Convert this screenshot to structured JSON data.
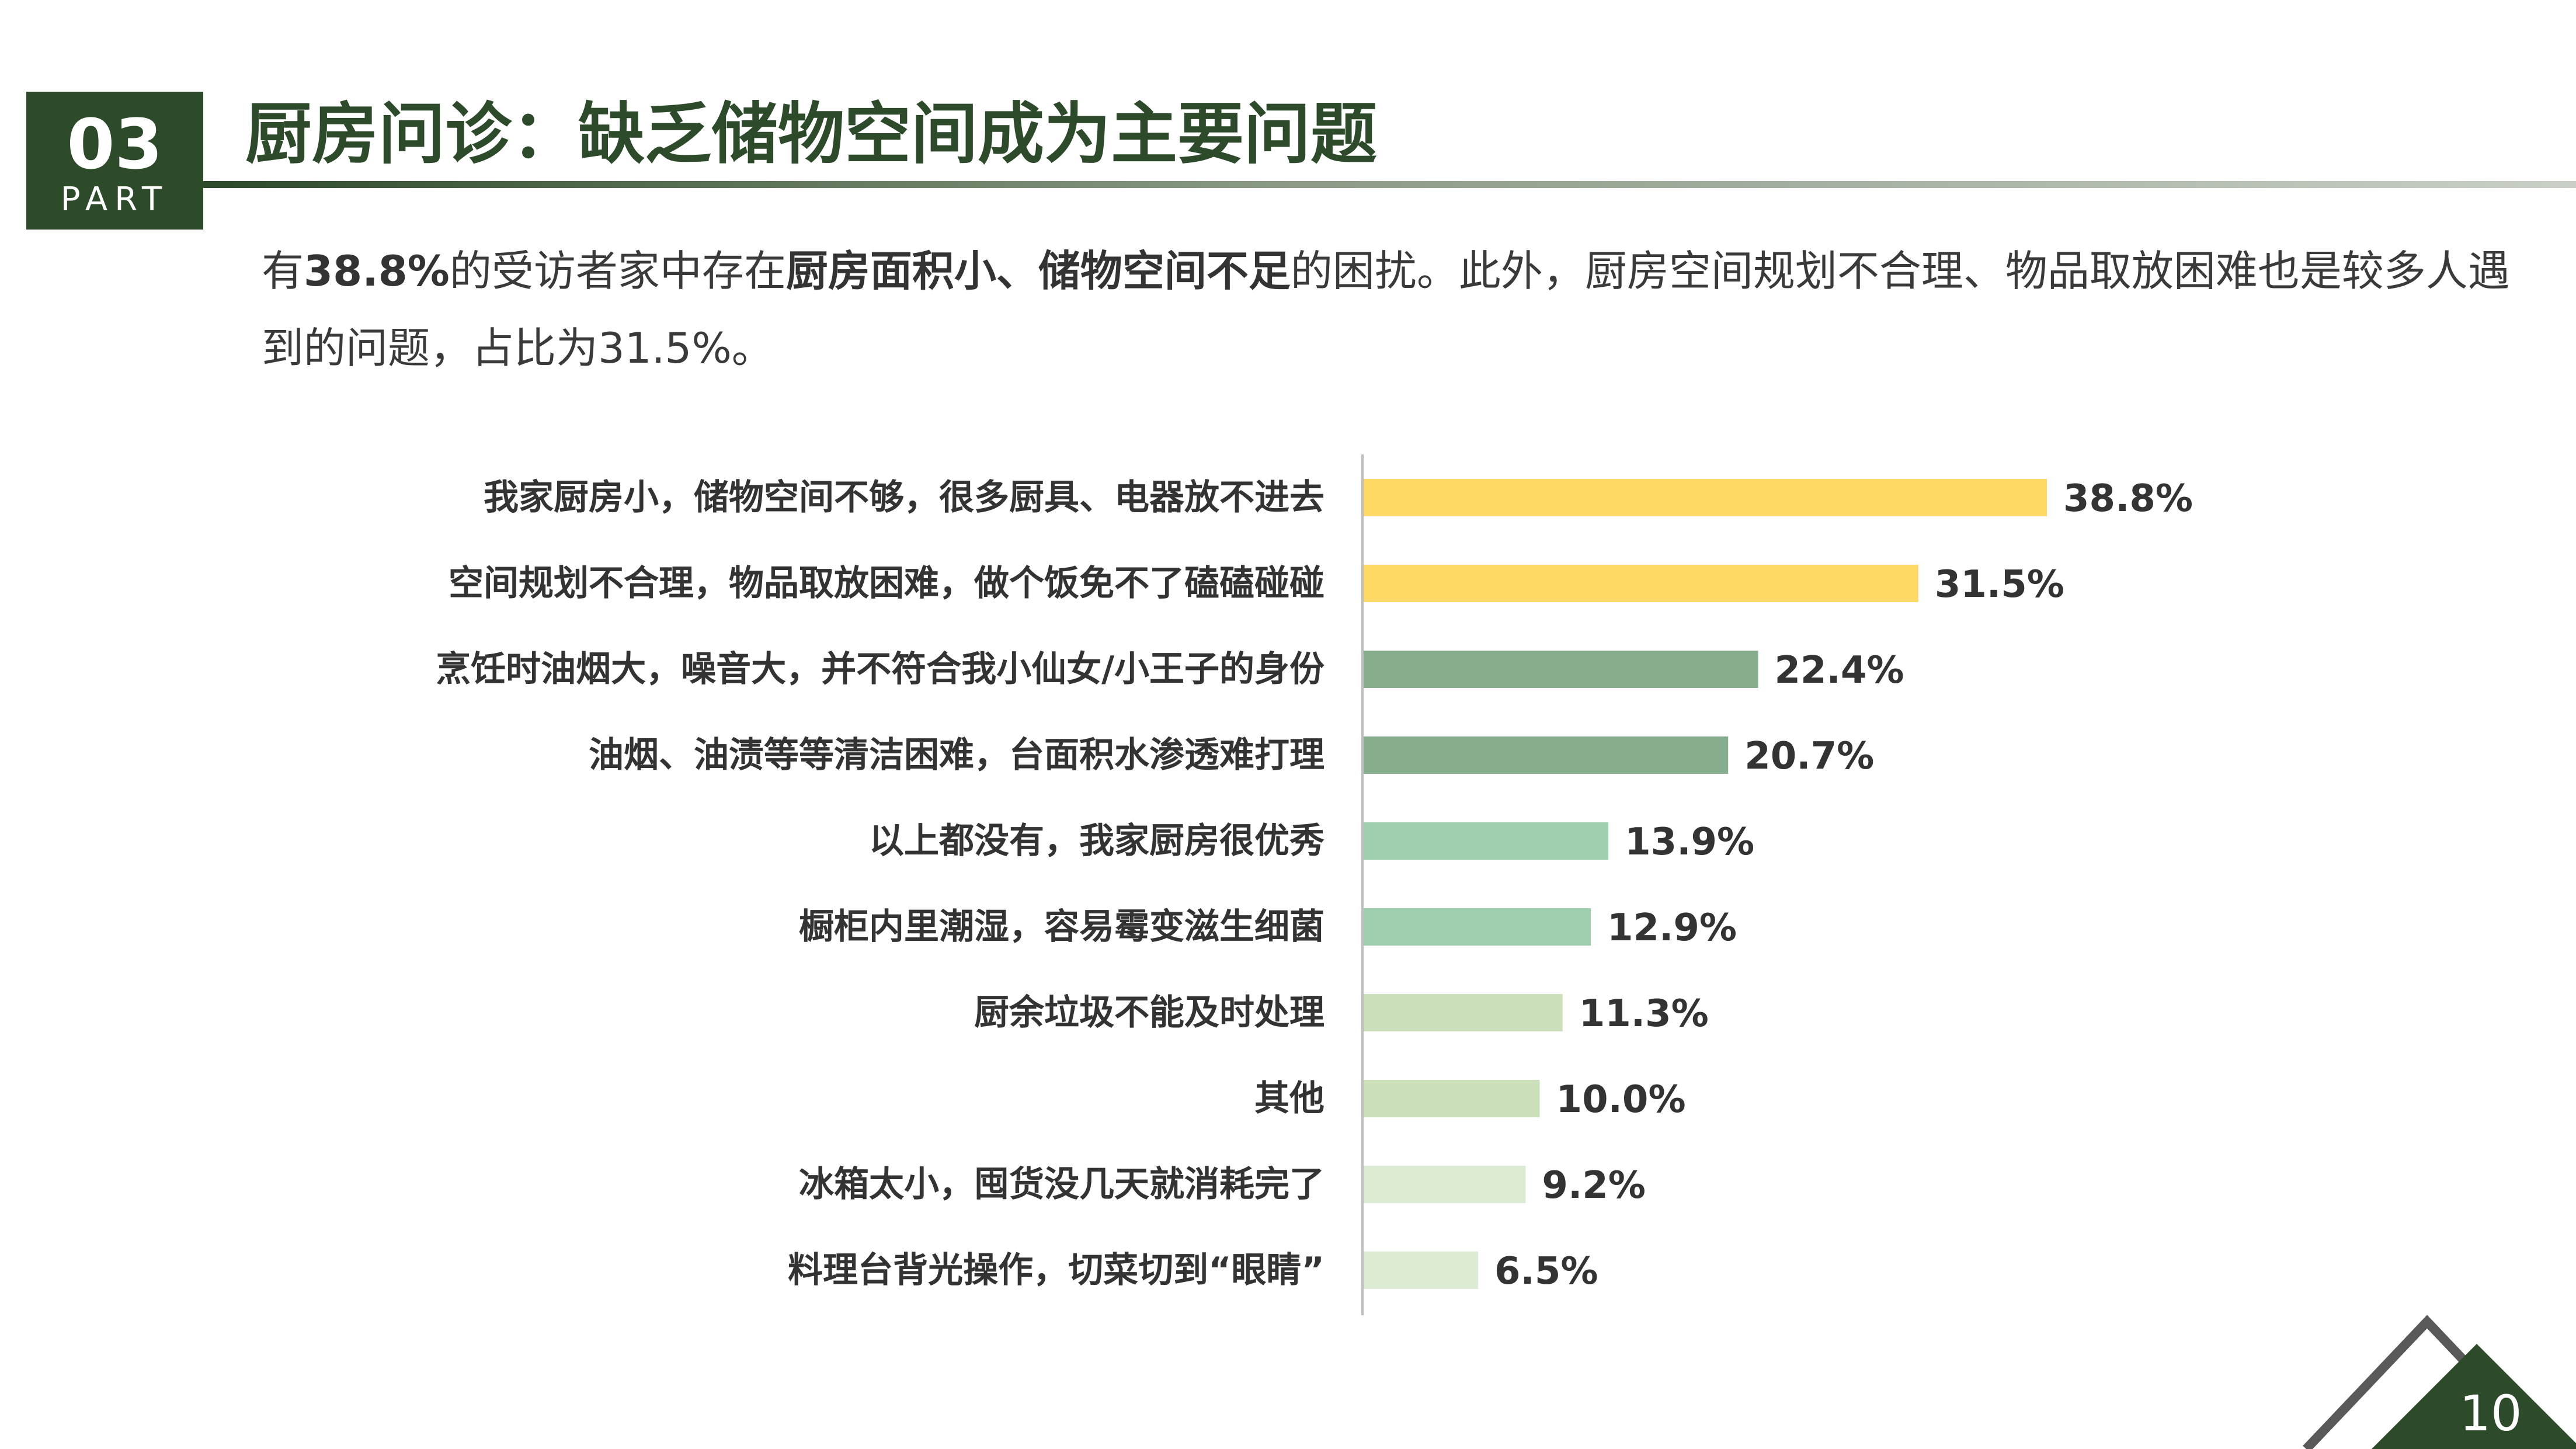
{
  "section": {
    "number": "03",
    "part_label": "PART"
  },
  "title": "厨房问诊：缺乏储物空间成为主要问题",
  "description": {
    "p1": "有",
    "b1": "38.8%",
    "p2": "的受访者家中存在",
    "b2": "厨房面积小、储物空间不足",
    "p3": "的困扰。此外，厨房空间规划不合理、物品取放困难也是较多人遇到的问题，占比为31.5%。"
  },
  "page_number": "10",
  "chart_data": {
    "type": "bar",
    "orientation": "horizontal",
    "title": "",
    "xlabel": "",
    "ylabel": "",
    "xlim": [
      0,
      38.8
    ],
    "grid": false,
    "categories": [
      "我家厨房小，储物空间不够，很多厨具、电器放不进去",
      "空间规划不合理，物品取放困难，做个饭免不了磕磕碰碰",
      "烹饪时油烟大，噪音大，并不符合我小仙女/小王子的身份",
      "油烟、油渍等等清洁困难，台面积水渗透难打理",
      "以上都没有，我家厨房很优秀",
      "橱柜内里潮湿，容易霉变滋生细菌",
      "厨余垃圾不能及时处理",
      "其他",
      "冰箱太小，囤货没几天就消耗完了",
      "料理台背光操作，切菜切到“眼睛”"
    ],
    "values": [
      38.8,
      31.5,
      22.4,
      20.7,
      13.9,
      12.9,
      11.3,
      10.0,
      9.2,
      6.5
    ],
    "value_labels": [
      "38.8%",
      "31.5%",
      "22.4%",
      "20.7%",
      "13.9%",
      "12.9%",
      "11.3%",
      "10.0%",
      "9.2%",
      "6.5%"
    ],
    "bar_colors": [
      "#ffd966",
      "#ffd966",
      "#86ae8e",
      "#86ae8e",
      "#a0cfb0",
      "#a0cfb0",
      "#cde0bc",
      "#cde0bc",
      "#dcecd4",
      "#dcecd4"
    ]
  },
  "colors": {
    "brand_green": "#2d4a2b",
    "axis_line": "#bfbfbf",
    "label_text": "#333333"
  }
}
